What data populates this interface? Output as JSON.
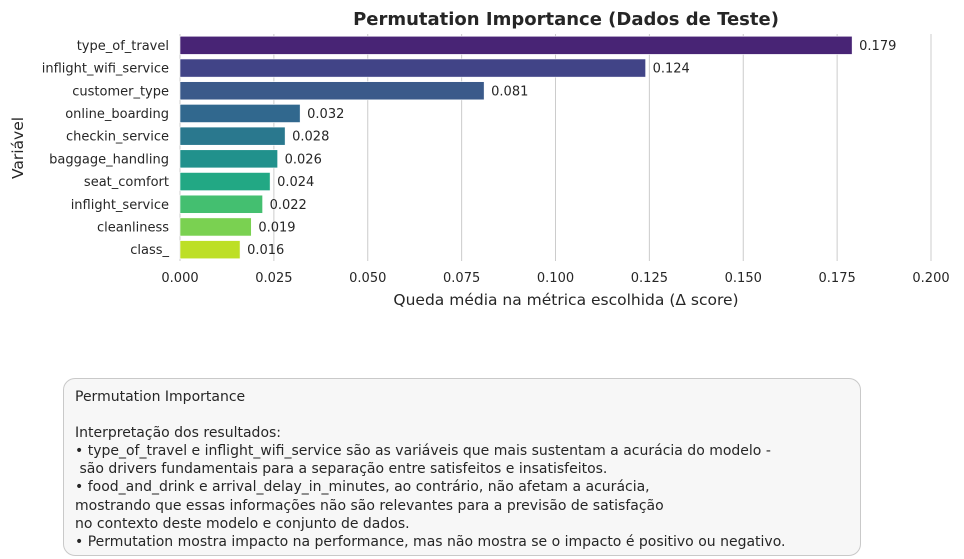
{
  "chart_data": {
    "type": "bar",
    "orientation": "horizontal",
    "title": "Permutation Importance (Dados de Teste)",
    "xlabel": "Queda média na métrica escolhida (Δ score)",
    "ylabel": "Variável",
    "xlim": [
      0,
      0.2
    ],
    "xticks": [
      "0.000",
      "0.025",
      "0.050",
      "0.075",
      "0.100",
      "0.125",
      "0.150",
      "0.175",
      "0.200"
    ],
    "grid": "vertical",
    "categories": [
      "type_of_travel",
      "inflight_wifi_service",
      "customer_type",
      "online_boarding",
      "checkin_service",
      "baggage_handling",
      "seat_comfort",
      "inflight_service",
      "cleanliness",
      "class_"
    ],
    "values": [
      0.179,
      0.124,
      0.081,
      0.032,
      0.028,
      0.026,
      0.024,
      0.022,
      0.019,
      0.016
    ],
    "value_labels": [
      "0.179",
      "0.124",
      "0.081",
      "0.032",
      "0.028",
      "0.026",
      "0.024",
      "0.022",
      "0.019",
      "0.016"
    ],
    "colors": [
      "#482475",
      "#414487",
      "#3b5a8a",
      "#31688e",
      "#2a788e",
      "#21918c",
      "#22a884",
      "#44bf70",
      "#7ad151",
      "#bddf26"
    ]
  },
  "note": {
    "title": "Permutation Importance",
    "subtitle": "Interpretação dos resultados:",
    "lines": [
      "• type_of_travel e inflight_wifi_service são as variáveis que mais sustentam a acurácia do modelo -",
      " são drivers fundamentais para a separação entre satisfeitos e insatisfeitos.",
      "• food_and_drink e arrival_delay_in_minutes, ao contrário, não afetam a acurácia,",
      "mostrando que essas informações não são relevantes para a previsão de satisfação",
      "no contexto deste modelo e conjunto de dados.",
      "• Permutation mostra impacto na performance, mas não mostra se o impacto é positivo ou negativo."
    ]
  }
}
